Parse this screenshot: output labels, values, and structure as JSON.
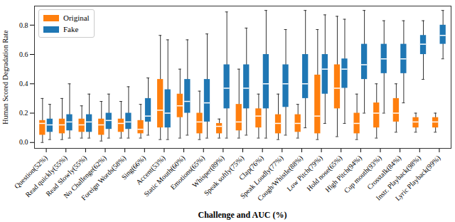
{
  "chart_data": {
    "type": "box",
    "x_label": "Challenge and AUC (%)",
    "y_label": "Human Scored Degradation Rate",
    "categories": [
      "Question(52%)",
      "Read quickly(55%)",
      "Read Slowly(55%)",
      "No Challenge(62%)",
      "Foreign Words(58%)",
      "Sing(66%)",
      "Accent(53%)",
      "Static Mouth(60%)",
      "Emotions(65%)",
      "Whisper(89%)",
      "Speak softly(75%)",
      "Clap(76%)",
      "Speak Loudly(77%)",
      "Cough/Whistle(88%)",
      "Low Pitch(79%)",
      "Hold nose(65%)",
      "High Pitch(94%)",
      "Cup mouth(93%)",
      "Crosstalk(84%)",
      "Instr. Playback(98%)",
      "Lyric Playback(99%)"
    ],
    "series": [
      {
        "name": "Original",
        "color": "#ff7f0e",
        "whisker_low": [
          0.0,
          0.02,
          0.03,
          0.01,
          0.03,
          0.03,
          0.02,
          0.03,
          0.02,
          0.03,
          0.03,
          0.03,
          0.02,
          0.03,
          0.02,
          0.04,
          0.02,
          0.03,
          0.07,
          0.07,
          0.07
        ],
        "q1": [
          0.05,
          0.06,
          0.07,
          0.05,
          0.07,
          0.06,
          0.1,
          0.17,
          0.06,
          0.06,
          0.08,
          0.1,
          0.06,
          0.07,
          0.06,
          0.23,
          0.06,
          0.1,
          0.14,
          0.1,
          0.1
        ],
        "median": [
          0.13,
          0.12,
          0.12,
          0.12,
          0.13,
          0.09,
          0.22,
          0.25,
          0.14,
          0.11,
          0.14,
          0.18,
          0.13,
          0.13,
          0.18,
          0.37,
          0.13,
          0.2,
          0.2,
          0.14,
          0.14
        ],
        "q3": [
          0.15,
          0.16,
          0.16,
          0.16,
          0.16,
          0.15,
          0.43,
          0.33,
          0.2,
          0.13,
          0.26,
          0.23,
          0.19,
          0.19,
          0.46,
          0.53,
          0.2,
          0.27,
          0.3,
          0.17,
          0.17
        ],
        "whisker_high": [
          0.3,
          0.3,
          0.25,
          0.28,
          0.28,
          0.26,
          0.73,
          0.5,
          0.35,
          0.16,
          0.5,
          0.33,
          0.33,
          0.26,
          0.77,
          0.86,
          0.33,
          0.4,
          0.4,
          0.2,
          0.2
        ]
      },
      {
        "name": "Fake",
        "color": "#1f77b4",
        "whisker_low": [
          0.02,
          0.03,
          0.03,
          0.03,
          0.03,
          0.05,
          0.02,
          0.05,
          0.03,
          0.03,
          0.05,
          0.03,
          0.05,
          0.1,
          0.13,
          0.13,
          0.2,
          0.2,
          0.27,
          0.43,
          0.57
        ],
        "q1": [
          0.07,
          0.08,
          0.07,
          0.09,
          0.09,
          0.14,
          0.1,
          0.2,
          0.14,
          0.23,
          0.23,
          0.23,
          0.24,
          0.3,
          0.33,
          0.37,
          0.43,
          0.47,
          0.47,
          0.6,
          0.67
        ],
        "median": [
          0.12,
          0.14,
          0.14,
          0.15,
          0.14,
          0.18,
          0.2,
          0.28,
          0.27,
          0.37,
          0.37,
          0.4,
          0.4,
          0.4,
          0.5,
          0.5,
          0.53,
          0.57,
          0.57,
          0.67,
          0.73
        ],
        "q3": [
          0.16,
          0.19,
          0.19,
          0.2,
          0.2,
          0.3,
          0.36,
          0.43,
          0.43,
          0.53,
          0.53,
          0.6,
          0.53,
          0.6,
          0.6,
          0.57,
          0.67,
          0.67,
          0.67,
          0.73,
          0.8
        ],
        "whisker_high": [
          0.26,
          0.4,
          0.33,
          0.33,
          0.38,
          0.44,
          0.7,
          0.7,
          0.74,
          0.89,
          0.78,
          0.9,
          0.77,
          0.9,
          0.87,
          0.84,
          0.9,
          0.83,
          0.83,
          0.83,
          0.9
        ]
      }
    ],
    "ylim": [
      -0.04,
      0.93
    ],
    "yticks": [
      {
        "value": 0,
        "label": "0.0"
      },
      {
        "value": 0.2,
        "label": "0.2"
      },
      {
        "value": 0.4,
        "label": "0.4"
      },
      {
        "value": 0.6,
        "label": "0.6"
      },
      {
        "value": 0.8,
        "label": "0.8"
      }
    ],
    "legend": "upper left"
  }
}
